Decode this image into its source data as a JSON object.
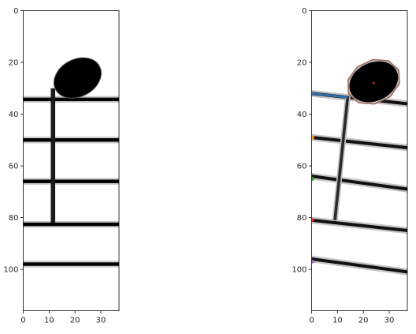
{
  "chart_data": [
    {
      "type": "heatmap",
      "title": "",
      "xlabel": "",
      "ylabel": "",
      "xlim": [
        0,
        37
      ],
      "ylim": [
        116,
        0
      ],
      "xticks": [
        "0",
        "10",
        "20",
        "30"
      ],
      "xtick_values": [
        0,
        10,
        20,
        30
      ],
      "yticks": [
        "0",
        "20",
        "40",
        "60",
        "80",
        "100"
      ],
      "ytick_values": [
        0,
        20,
        40,
        60,
        80,
        100
      ],
      "colormap": "gray",
      "content": "binary music notation: notehead with stem over five staff lines",
      "staff_lines_y": [
        34.3,
        50,
        66,
        82.6,
        98
      ],
      "stem": {
        "x": 11.5,
        "y_top": 30,
        "y_bottom": 82
      },
      "notehead": {
        "center": [
          21,
          26
        ],
        "rx": 9.6,
        "ry": 7.2,
        "rotation_deg": -28
      }
    },
    {
      "type": "heatmap",
      "title": "",
      "xlabel": "",
      "ylabel": "",
      "xlim": [
        0,
        37
      ],
      "ylim": [
        116,
        0
      ],
      "xticks": [
        "0",
        "10",
        "20",
        "30"
      ],
      "xtick_values": [
        0,
        10,
        20,
        30
      ],
      "yticks": [
        "0",
        "20",
        "40",
        "60",
        "80",
        "100"
      ],
      "ytick_values": [
        0,
        20,
        40,
        60,
        80,
        100
      ],
      "colormap": "gray",
      "content": "rotated music notation with detected notehead contour and staff-line markers",
      "staff_lines": [
        {
          "y_start": 32,
          "y_end": 36
        },
        {
          "y_start": 49,
          "y_end": 53
        },
        {
          "y_start": 64,
          "y_end": 69
        },
        {
          "y_start": 81,
          "y_end": 85
        },
        {
          "y_start": 96,
          "y_end": 101
        }
      ],
      "stem": {
        "x_top": 14,
        "y_top": 33,
        "x_bottom": 9,
        "y_bottom": 81
      },
      "notehead": {
        "center": [
          24,
          27.5
        ],
        "rx": 9.8,
        "ry": 7.4,
        "rotation_deg": -25
      },
      "notehead_center_marker": [
        24,
        28
      ],
      "contour_color": "#a06a5a",
      "highlight_line": {
        "x_start": 0,
        "x_end": 14,
        "y_start": 32,
        "y_end": 33.5,
        "color": "#2f6fb0"
      },
      "markers": [
        {
          "x": 0.3,
          "y": 49,
          "color": "#ff9f1c"
        },
        {
          "x": 0.3,
          "y": 65,
          "color": "#2ca02c"
        },
        {
          "x": 0.3,
          "y": 81,
          "color": "#d62728"
        },
        {
          "x": 0.3,
          "y": 97,
          "color": "#9467bd"
        }
      ]
    }
  ]
}
